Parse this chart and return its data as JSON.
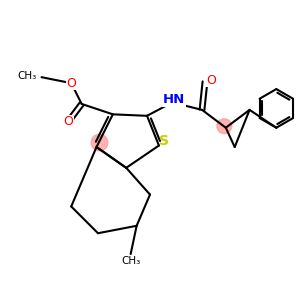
{
  "background_color": "#ffffff",
  "bond_color": "#000000",
  "sulfur_color": "#cccc00",
  "nitrogen_color": "#0000ff",
  "oxygen_color": "#ff0000",
  "highlight_color": "#ff9999",
  "bond_width": 1.5,
  "figsize": [
    3.0,
    3.0
  ],
  "dpi": 100,
  "xlim": [
    0,
    10
  ],
  "ylim": [
    0,
    10
  ]
}
